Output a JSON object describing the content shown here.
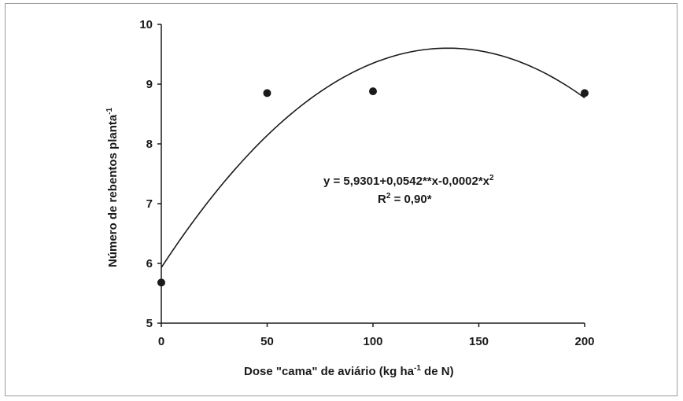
{
  "chart_data": {
    "type": "scatter",
    "xlabel_main": "Dose \"cama\" de aviário (kg ha",
    "xlabel_sup": "-1",
    "xlabel_tail": " de N)",
    "ylabel_main": "Número de rebentos planta",
    "ylabel_sup": "-1",
    "xlim": [
      0,
      200
    ],
    "ylim": [
      5,
      10
    ],
    "xticks": [
      0,
      50,
      100,
      150,
      200
    ],
    "yticks": [
      5,
      6,
      7,
      8,
      9,
      10
    ],
    "points": {
      "x": [
        0,
        50,
        100,
        200
      ],
      "y": [
        5.68,
        8.85,
        8.88,
        8.85
      ]
    },
    "fit": {
      "intercept": 5.9301,
      "linear": 0.0542,
      "quadratic": -0.0002
    },
    "equation_main": "y = 5,9301+0,0542**x-0,0002*x",
    "equation_sup": "2",
    "r2_label": "R",
    "r2_sup": "2",
    "r2_value": " = 0,90*",
    "grid": false,
    "legend": "none"
  }
}
